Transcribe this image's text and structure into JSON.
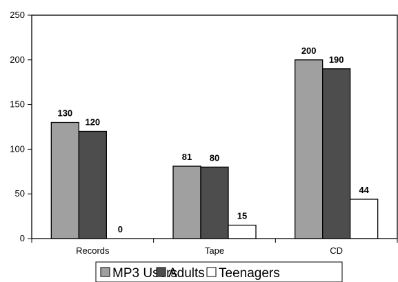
{
  "chart_data": {
    "type": "bar",
    "categories": [
      "Records",
      "Tape",
      "CD"
    ],
    "series": [
      {
        "name": "MP3 Users",
        "values": [
          130,
          81,
          200
        ],
        "color": "#a0a0a0"
      },
      {
        "name": "Adults",
        "values": [
          120,
          80,
          190
        ],
        "color": "#4d4d4d"
      },
      {
        "name": "Teenagers",
        "values": [
          0,
          15,
          44
        ],
        "color": "#ffffff"
      }
    ],
    "ylim": [
      0,
      250
    ],
    "yticks": [
      0,
      50,
      100,
      150,
      200,
      250
    ],
    "data_labels": true,
    "grid": false,
    "legend": "bottom",
    "xlabel": "",
    "ylabel": ""
  }
}
